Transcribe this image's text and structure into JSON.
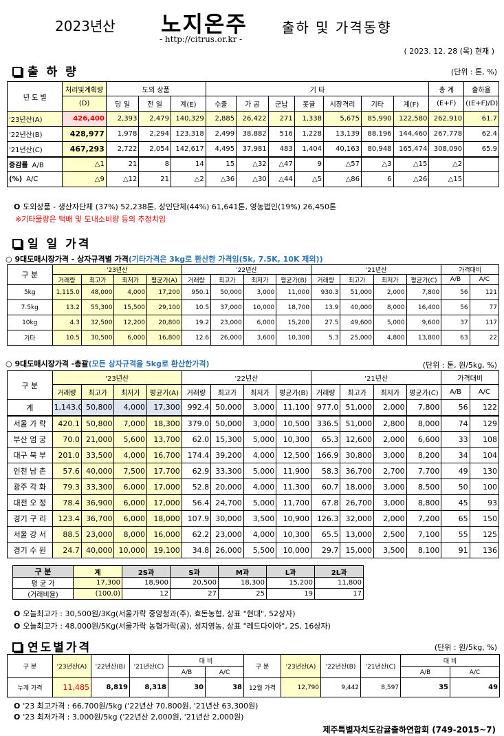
{
  "title": {
    "year": "2023년산",
    "name": "노지온주",
    "rest": "출하 및 가격동향",
    "url": "- http://citrus.or.kr -",
    "date": "( 2023.  12.  28 (목) 현재 )"
  },
  "ship": {
    "section": "출 하 량",
    "unit": "(단위 : 톤, %)",
    "h": {
      "nd": "년 도 별",
      "plan": "처리및계획량",
      "planD": "(D)",
      "dom": "도외 상품",
      "today": "당 일",
      "prev": "전 일",
      "totE": "계(E)",
      "etc": "기        타",
      "exp": "수출",
      "proc": "가 공",
      "mil": "군납",
      "gift": "폿귤",
      "market": "시장격리",
      "other": "기타",
      "totF": "계(F)",
      "grand": "총  계",
      "grandEF": "(E+F)",
      "rate": "출하율",
      "rateEq": "((E+F)/D)"
    },
    "rows": [
      [
        "'23년산(A)",
        "426,400",
        "2,393",
        "2,479",
        "140,329",
        "2,885",
        "26,422",
        "271",
        "1,338",
        "5,675",
        "85,990",
        "122,580",
        "262,910",
        "61.7"
      ],
      [
        "'22년산(B)",
        "428,977",
        "1,978",
        "2,294",
        "123,318",
        "2,499",
        "38,882",
        "516",
        "1,228",
        "13,139",
        "88,196",
        "144,460",
        "267,778",
        "62.4"
      ],
      [
        "'21년산(C)",
        "467,293",
        "2,722",
        "2,054",
        "142,617",
        "4,495",
        "37,981",
        "483",
        "1,404",
        "40,163",
        "80,948",
        "165,474",
        "308,090",
        "65.9"
      ]
    ],
    "incLabel": "증감률",
    "pctLabel": "(%)",
    "inc": [
      [
        "A/B",
        "△1",
        "21",
        "8",
        "14",
        "15",
        "△32",
        "△47",
        "9",
        "△57",
        "△3",
        "△15",
        "△2",
        ""
      ],
      [
        "A/C",
        "△9",
        "△12",
        "21",
        "△2",
        "△36",
        "△30",
        "△44",
        "△5",
        "△86",
        "6",
        "△26",
        "△15",
        ""
      ]
    ],
    "note1": "도외상품 - 생산자단체 (37%) 52,238톤, 상인단체(44%) 61,641톤, 영농법인(19%) 26,450톤",
    "note2": "※기타물량은 택배 및 도내소비량 등의 추정치임"
  },
  "daily": {
    "section": "일 일 가격",
    "t1title": "9대도매시장가격 - 상자규격별 가격",
    "t1note": "(기타가격은 3kg로 환산한 가격임(5k, 7.5K, 10K 제외))",
    "gubun": "구  분",
    "y23": "'23년산",
    "y22": "'22년산",
    "y21": "'21년산",
    "cmp": "가격대비",
    "cols": [
      "거래량",
      "최고가",
      "최저가"
    ],
    "avgA": "평균가(A)",
    "avgB": "평균가(B)",
    "avgC": "평균가(C)",
    "ab": "A/B",
    "ac": "A/C",
    "t1rows": [
      [
        "5kg",
        "1,115.0",
        "48,000",
        "4,000",
        "17,200",
        "950.1",
        "50,000",
        "3,000",
        "11,000",
        "930.3",
        "51,000",
        "2,000",
        "7,800",
        "56",
        "121"
      ],
      [
        "7.5kg",
        "13.2",
        "55,300",
        "15,500",
        "29,100",
        "10.5",
        "37,000",
        "10,000",
        "18,700",
        "13.9",
        "40,000",
        "8,000",
        "16,400",
        "56",
        "77"
      ],
      [
        "10kg",
        "4.3",
        "32,500",
        "12,200",
        "20,800",
        "19.2",
        "23,000",
        "6,000",
        "15,200",
        "27.5",
        "49,600",
        "5,000",
        "9,600",
        "37",
        "117"
      ],
      [
        "기타",
        "10.5",
        "30,500",
        "6,000",
        "16,800",
        "12.6",
        "26,000",
        "3,600",
        "10,300",
        "5.3",
        "25,000",
        "4,800",
        "13,800",
        "63",
        "22"
      ]
    ],
    "t2title": "9대도매시장가격 -총괄",
    "t2note": "(모든 상자규격을 5kg로 환산한가격)",
    "t2unit": "(단위 : 톤, 원/5kg, %)",
    "t2rows": [
      [
        "계",
        "1,143.0",
        "50,800",
        "4,000",
        "17,300",
        "992.4",
        "50,000",
        "3,000",
        "11,100",
        "977.0",
        "51,000",
        "2,000",
        "7,800",
        "56",
        "122"
      ],
      [
        "서울 가 락",
        "420.1",
        "50,800",
        "7,000",
        "18,300",
        "379.0",
        "50,000",
        "3,000",
        "10,500",
        "336.5",
        "51,000",
        "2,800",
        "8,000",
        "74",
        "129"
      ],
      [
        "부산 엄 궁",
        "70.0",
        "21,000",
        "5,600",
        "13,700",
        "62.0",
        "15,300",
        "5,000",
        "10,300",
        "65.3",
        "12,600",
        "2,000",
        "6,600",
        "33",
        "108"
      ],
      [
        "대구 북 부",
        "201.0",
        "33,500",
        "4,000",
        "16,700",
        "174.4",
        "39,200",
        "4,000",
        "12,500",
        "166.9",
        "30,800",
        "3,000",
        "8,200",
        "34",
        "104"
      ],
      [
        "인천 남 촌",
        "57.6",
        "40,000",
        "7,500",
        "17,700",
        "62.9",
        "33,300",
        "5,000",
        "11,900",
        "58.3",
        "36,700",
        "2,700",
        "7,700",
        "49",
        "130"
      ],
      [
        "광주 각 화",
        "79.3",
        "33,300",
        "6,000",
        "17,000",
        "52.8",
        "20,000",
        "4,000",
        "11,300",
        "60.7",
        "18,000",
        "3,000",
        "8,500",
        "50",
        "100"
      ],
      [
        "대전 오 정",
        "78.4",
        "36,900",
        "6,000",
        "17,000",
        "56.4",
        "24,700",
        "5,000",
        "11,700",
        "67.8",
        "26,700",
        "3,000",
        "8,800",
        "45",
        "93"
      ],
      [
        "경기 구 리",
        "123.4",
        "36,700",
        "6,000",
        "18,000",
        "107.9",
        "30,000",
        "3,500",
        "10,900",
        "126.3",
        "32,000",
        "2,000",
        "7,200",
        "65",
        "150"
      ],
      [
        "서울 강 서",
        "88.5",
        "23,000",
        "8,000",
        "16,000",
        "62.2",
        "23,000",
        "4,000",
        "10,300",
        "65.5",
        "13,000",
        "2,500",
        "7,100",
        "55",
        "125"
      ],
      [
        "경기 수 원",
        "24.7",
        "40,000",
        "10,000",
        "19,100",
        "34.8",
        "26,000",
        "5,500",
        "10,000",
        "29.7",
        "15,000",
        "3,500",
        "8,100",
        "91",
        "136"
      ]
    ],
    "size": {
      "gubun": "구  분",
      "heads": [
        "계",
        "2S과",
        "S과",
        "M과",
        "L과",
        "2L과"
      ],
      "avgLabel": "평 균 가",
      "avg": [
        "17,300",
        "18,900",
        "20,500",
        "18,300",
        "15,200",
        "11,800"
      ],
      "ratioLabel": "(거래비율)",
      "ratio": [
        "(100.0)",
        "12",
        "27",
        "25",
        "19",
        "17"
      ]
    },
    "max1": "오늘최고가  : 30,500원/3Kg(서울가락 중앙청과(주), 효돈농협, 상표 \"현대\", 52상자)",
    "max2": "오늘최고가  : 48,000원/5Kg(서울가락 농협가락(공), 성지영농, 상표 \"레드다이아\", 2S, 16상자)"
  },
  "yearly": {
    "section": "연도별가격",
    "unit": "(단위 : 원/5kg, %)",
    "gubun": "구    분",
    "a": "'23년산(A)",
    "b": "'22년산(B)",
    "c": "'21년산(C)",
    "daebi": "대    비",
    "ab": "A/B",
    "ac": "A/C",
    "r1": [
      "누계 가격",
      "11,485",
      "8,819",
      "8,318",
      "30",
      "38"
    ],
    "r2": [
      "12월 가격",
      "12,790",
      "9,442",
      "8,597",
      "35",
      "49"
    ],
    "n1": "'23 최고가격 : 66,700원/5kg ('22년산 70,800원, '21년산 63,300원)",
    "n2": "'23 최저가격 :   3,000원/5kg ('22년산  2,000원, '21년산  2,000원)",
    "footer": "제주특별자치도감귤출하연합회 (749-2015~7)"
  }
}
